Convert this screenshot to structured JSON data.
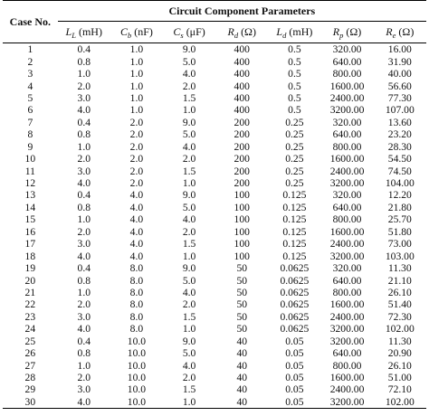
{
  "table": {
    "case_header": "Case No.",
    "group_header": "Circuit Component Parameters",
    "columns": [
      {
        "symbol": "L",
        "sub": "L",
        "unit": "(mH)"
      },
      {
        "symbol": "C",
        "sub": "b",
        "unit": "(nF)"
      },
      {
        "symbol": "C",
        "sub": "s",
        "unit": "(μF)"
      },
      {
        "symbol": "R",
        "sub": "d",
        "unit": "(Ω)"
      },
      {
        "symbol": "L",
        "sub": "d",
        "unit": "(mH)"
      },
      {
        "symbol": "R",
        "sub": "p",
        "unit": "(Ω)"
      },
      {
        "symbol": "R",
        "sub": "e",
        "unit": "(Ω)"
      }
    ],
    "rows": [
      [
        "1",
        "0.4",
        "1.0",
        "9.0",
        "400",
        "0.5",
        "320.00",
        "16.00"
      ],
      [
        "2",
        "0.8",
        "1.0",
        "5.0",
        "400",
        "0.5",
        "640.00",
        "31.90"
      ],
      [
        "3",
        "1.0",
        "1.0",
        "4.0",
        "400",
        "0.5",
        "800.00",
        "40.00"
      ],
      [
        "4",
        "2.0",
        "1.0",
        "2.0",
        "400",
        "0.5",
        "1600.00",
        "56.60"
      ],
      [
        "5",
        "3.0",
        "1.0",
        "1.5",
        "400",
        "0.5",
        "2400.00",
        "77.30"
      ],
      [
        "6",
        "4.0",
        "1.0",
        "1.0",
        "400",
        "0.5",
        "3200.00",
        "107.00"
      ],
      [
        "7",
        "0.4",
        "2.0",
        "9.0",
        "200",
        "0.25",
        "320.00",
        "13.60"
      ],
      [
        "8",
        "0.8",
        "2.0",
        "5.0",
        "200",
        "0.25",
        "640.00",
        "23.20"
      ],
      [
        "9",
        "1.0",
        "2.0",
        "4.0",
        "200",
        "0.25",
        "800.00",
        "28.30"
      ],
      [
        "10",
        "2.0",
        "2.0",
        "2.0",
        "200",
        "0.25",
        "1600.00",
        "54.50"
      ],
      [
        "11",
        "3.0",
        "2.0",
        "1.5",
        "200",
        "0.25",
        "2400.00",
        "74.50"
      ],
      [
        "12",
        "4.0",
        "2.0",
        "1.0",
        "200",
        "0.25",
        "3200.00",
        "104.00"
      ],
      [
        "13",
        "0.4",
        "4.0",
        "9.0",
        "100",
        "0.125",
        "320.00",
        "12.20"
      ],
      [
        "14",
        "0.8",
        "4.0",
        "5.0",
        "100",
        "0.125",
        "640.00",
        "21.80"
      ],
      [
        "15",
        "1.0",
        "4.0",
        "4.0",
        "100",
        "0.125",
        "800.00",
        "25.70"
      ],
      [
        "16",
        "2.0",
        "4.0",
        "2.0",
        "100",
        "0.125",
        "1600.00",
        "51.80"
      ],
      [
        "17",
        "3.0",
        "4.0",
        "1.5",
        "100",
        "0.125",
        "2400.00",
        "73.00"
      ],
      [
        "18",
        "4.0",
        "4.0",
        "1.0",
        "100",
        "0.125",
        "3200.00",
        "103.00"
      ],
      [
        "19",
        "0.4",
        "8.0",
        "9.0",
        "50",
        "0.0625",
        "320.00",
        "11.30"
      ],
      [
        "20",
        "0.8",
        "8.0",
        "5.0",
        "50",
        "0.0625",
        "640.00",
        "21.10"
      ],
      [
        "21",
        "1.0",
        "8.0",
        "4.0",
        "50",
        "0.0625",
        "800.00",
        "26.10"
      ],
      [
        "22",
        "2.0",
        "8.0",
        "2.0",
        "50",
        "0.0625",
        "1600.00",
        "51.40"
      ],
      [
        "23",
        "3.0",
        "8.0",
        "1.5",
        "50",
        "0.0625",
        "2400.00",
        "72.30"
      ],
      [
        "24",
        "4.0",
        "8.0",
        "1.0",
        "50",
        "0.0625",
        "3200.00",
        "102.00"
      ],
      [
        "25",
        "0.4",
        "10.0",
        "9.0",
        "40",
        "0.05",
        "3200.00",
        "11.30"
      ],
      [
        "26",
        "0.8",
        "10.0",
        "5.0",
        "40",
        "0.05",
        "640.00",
        "20.90"
      ],
      [
        "27",
        "1.0",
        "10.0",
        "4.0",
        "40",
        "0.05",
        "800.00",
        "26.10"
      ],
      [
        "28",
        "2.0",
        "10.0",
        "2.0",
        "40",
        "0.05",
        "1600.00",
        "51.00"
      ],
      [
        "29",
        "3.0",
        "10.0",
        "1.5",
        "40",
        "0.05",
        "2400.00",
        "72.10"
      ],
      [
        "30",
        "4.0",
        "10.0",
        "1.0",
        "40",
        "0.05",
        "3200.00",
        "102.00"
      ]
    ]
  }
}
